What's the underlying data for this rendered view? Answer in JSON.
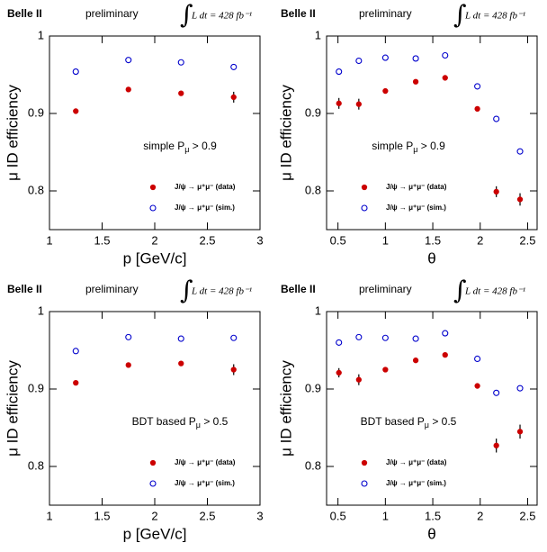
{
  "chart_data": [
    {
      "type": "scatter",
      "experiment": "Belle II",
      "status": "preliminary",
      "integral": "∫",
      "luminosity": "L dt = 428 fb⁻¹",
      "selection": "simple P",
      "selection_sub": "μ",
      "selection_tail": " > 0.9",
      "xlabel": "p [GeV/c]",
      "ylabel": "μ ID efficiency",
      "xlim": [
        1,
        3
      ],
      "xticks": [
        1,
        1.5,
        2,
        2.5,
        3
      ],
      "ylim": [
        0.75,
        1
      ],
      "yticks": [
        0.8,
        0.9,
        1
      ],
      "x": [
        1.25,
        1.75,
        2.25,
        2.75
      ],
      "series": [
        {
          "name": "J/ψ → μ⁺μ⁻ (data)",
          "color": "#cc0000",
          "marker": "filled",
          "values": [
            0.903,
            0.931,
            0.926,
            0.921
          ],
          "errors": [
            0.002,
            0.002,
            0.002,
            0.007
          ]
        },
        {
          "name": "J/ψ → μ⁺μ⁻ (sim.)",
          "color": "#0000cc",
          "marker": "open",
          "values": [
            0.954,
            0.969,
            0.966,
            0.96
          ]
        }
      ]
    },
    {
      "type": "scatter",
      "experiment": "Belle II",
      "status": "preliminary",
      "integral": "∫",
      "luminosity": "L dt = 428 fb⁻¹",
      "selection": "simple P",
      "selection_sub": "μ",
      "selection_tail": " > 0.9",
      "xlabel": "θ",
      "ylabel": "μ ID efficiency",
      "xlim": [
        0.38,
        2.6
      ],
      "xticks": [
        0.5,
        1,
        1.5,
        2,
        2.5
      ],
      "ylim": [
        0.75,
        1
      ],
      "yticks": [
        0.8,
        0.9,
        1
      ],
      "x": [
        0.51,
        0.72,
        1.0,
        1.32,
        1.63,
        1.97,
        2.17,
        2.42
      ],
      "series": [
        {
          "name": "J/ψ → μ⁺μ⁻ (data)",
          "color": "#cc0000",
          "marker": "filled",
          "values": [
            0.913,
            0.912,
            0.929,
            0.941,
            0.946,
            0.906,
            0.799,
            0.789
          ],
          "errors": [
            0.007,
            0.007,
            0.003,
            0.002,
            0.002,
            0.003,
            0.007,
            0.008
          ]
        },
        {
          "name": "J/ψ → μ⁺μ⁻ (sim.)",
          "color": "#0000cc",
          "marker": "open",
          "values": [
            0.954,
            0.968,
            0.972,
            0.971,
            0.975,
            0.935,
            0.893,
            0.851
          ]
        }
      ]
    },
    {
      "type": "scatter",
      "experiment": "Belle II",
      "status": "preliminary",
      "integral": "∫",
      "luminosity": "L dt = 428 fb⁻¹",
      "selection": "BDT based P",
      "selection_sub": "μ",
      "selection_tail": " > 0.5",
      "xlabel": "p [GeV/c]",
      "ylabel": "μ ID efficiency",
      "xlim": [
        1,
        3
      ],
      "xticks": [
        1,
        1.5,
        2,
        2.5,
        3
      ],
      "ylim": [
        0.75,
        1
      ],
      "yticks": [
        0.8,
        0.9,
        1
      ],
      "x": [
        1.25,
        1.75,
        2.25,
        2.75
      ],
      "series": [
        {
          "name": "J/ψ → μ⁺μ⁻ (data)",
          "color": "#cc0000",
          "marker": "filled",
          "values": [
            0.908,
            0.931,
            0.933,
            0.925
          ],
          "errors": [
            0.002,
            0.002,
            0.002,
            0.007
          ]
        },
        {
          "name": "J/ψ → μ⁺μ⁻ (sim.)",
          "color": "#0000cc",
          "marker": "open",
          "values": [
            0.949,
            0.967,
            0.965,
            0.966
          ]
        }
      ]
    },
    {
      "type": "scatter",
      "experiment": "Belle II",
      "status": "preliminary",
      "integral": "∫",
      "luminosity": "L dt = 428 fb⁻¹",
      "selection": "BDT based P",
      "selection_sub": "μ",
      "selection_tail": " > 0.5",
      "xlabel": "θ",
      "ylabel": "μ ID efficiency",
      "xlim": [
        0.38,
        2.6
      ],
      "xticks": [
        0.5,
        1,
        1.5,
        2,
        2.5
      ],
      "ylim": [
        0.75,
        1
      ],
      "yticks": [
        0.8,
        0.9,
        1
      ],
      "x": [
        0.51,
        0.72,
        1.0,
        1.32,
        1.63,
        1.97,
        2.17,
        2.42
      ],
      "series": [
        {
          "name": "J/ψ → μ⁺μ⁻ (data)",
          "color": "#cc0000",
          "marker": "filled",
          "values": [
            0.921,
            0.912,
            0.925,
            0.937,
            0.944,
            0.904,
            0.827,
            0.845
          ],
          "errors": [
            0.006,
            0.007,
            0.003,
            0.002,
            0.002,
            0.003,
            0.009,
            0.009
          ]
        },
        {
          "name": "J/ψ → μ⁺μ⁻ (sim.)",
          "color": "#0000cc",
          "marker": "open",
          "values": [
            0.96,
            0.967,
            0.966,
            0.965,
            0.972,
            0.939,
            0.895,
            0.901
          ]
        }
      ]
    }
  ]
}
